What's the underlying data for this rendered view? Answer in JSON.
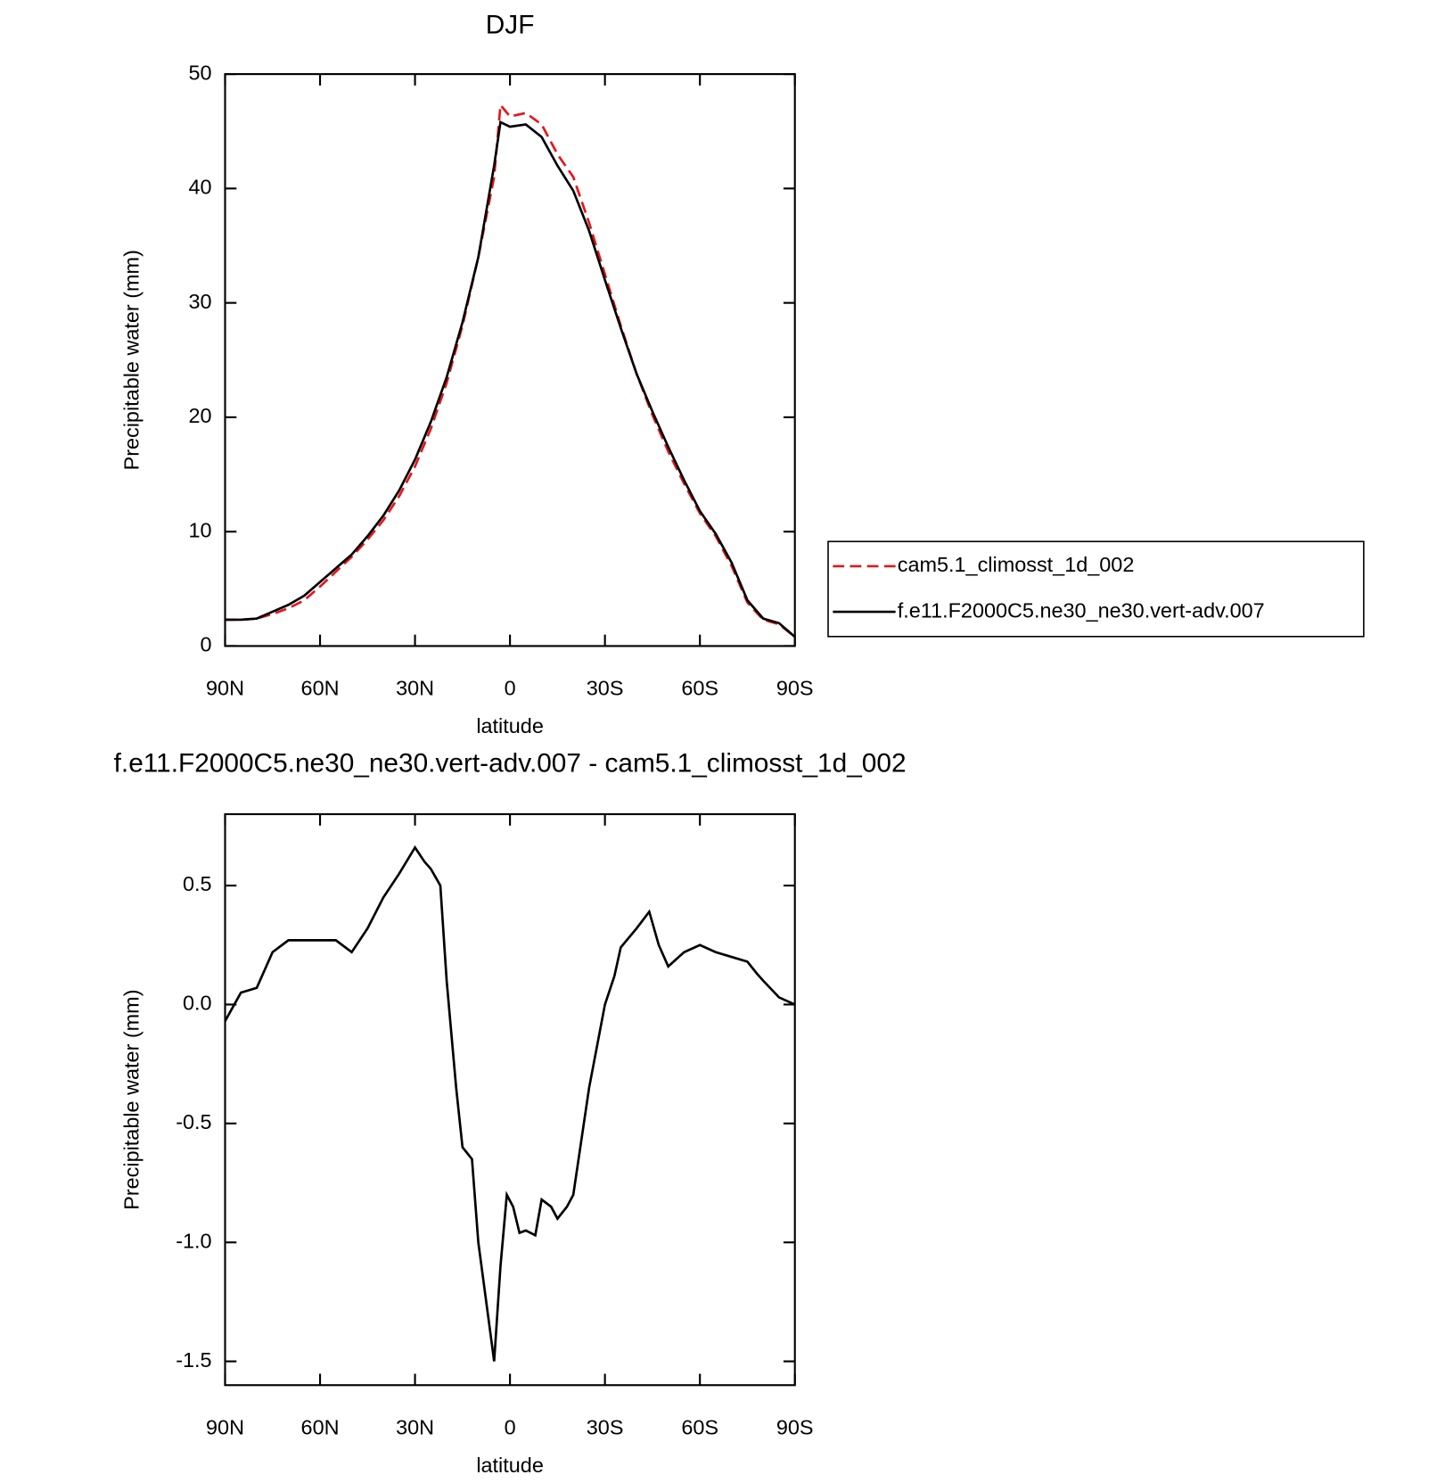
{
  "chart_data": [
    {
      "type": "line",
      "title": "DJF",
      "xlabel": "latitude",
      "ylabel": "Precipitable water (mm)",
      "x": [
        90,
        85,
        80,
        75,
        70,
        65,
        60,
        55,
        50,
        45,
        40,
        35,
        30,
        25,
        20,
        15,
        10,
        5,
        3,
        0,
        -5,
        -10,
        -15,
        -20,
        -25,
        -30,
        -35,
        -40,
        -45,
        -50,
        -55,
        -60,
        -65,
        -70,
        -75,
        -80,
        -85,
        -90
      ],
      "series": [
        {
          "name": "cam5.1_climosst_1d_002",
          "color": "#e8141c",
          "dashed": true,
          "values": [
            2.3,
            2.3,
            2.4,
            2.8,
            3.3,
            4.0,
            5.2,
            6.5,
            7.8,
            9.3,
            11.0,
            13.1,
            15.7,
            19.0,
            23.0,
            28.0,
            34.0,
            41.0,
            47.3,
            46.3,
            46.6,
            45.6,
            43.0,
            41.0,
            37.0,
            32.5,
            28.0,
            23.8,
            20.2,
            17.0,
            14.2,
            11.6,
            9.6,
            7.0,
            3.8,
            2.3,
            1.9,
            0.8
          ]
        },
        {
          "name": "f.e11.F2000C5.ne30_ne30.vert-adv.007",
          "color": "#000000",
          "dashed": false,
          "values": [
            2.3,
            2.3,
            2.4,
            3.0,
            3.6,
            4.4,
            5.6,
            6.8,
            8.0,
            9.6,
            11.4,
            13.6,
            16.3,
            19.6,
            23.5,
            28.3,
            34.0,
            42.0,
            45.8,
            45.4,
            45.6,
            44.5,
            42.0,
            39.8,
            36.3,
            32.0,
            27.8,
            23.8,
            20.5,
            17.4,
            14.5,
            11.8,
            9.8,
            7.3,
            4.0,
            2.4,
            2.0,
            0.8
          ]
        }
      ],
      "xlim": [
        90,
        -90
      ],
      "ylim": [
        0,
        50
      ],
      "xticks": [
        {
          "value": 90,
          "label": "90N"
        },
        {
          "value": 60,
          "label": "60N"
        },
        {
          "value": 30,
          "label": "30N"
        },
        0,
        {
          "value": -30,
          "label": "30S"
        },
        {
          "value": -60,
          "label": "60S"
        },
        {
          "value": -90,
          "label": "90S"
        }
      ],
      "yticks": [
        0,
        10,
        20,
        30,
        40,
        50
      ]
    },
    {
      "type": "line",
      "title": "f.e11.F2000C5.ne30_ne30.vert-adv.007 - cam5.1_climosst_1d_002",
      "xlabel": "latitude",
      "ylabel": "Precipitable water (mm)",
      "x": [
        90,
        85,
        80,
        75,
        70,
        65,
        60,
        55,
        50,
        45,
        40,
        35,
        30,
        27,
        25,
        22,
        20,
        17,
        15,
        12,
        10,
        7,
        5,
        3,
        1,
        -1,
        -3,
        -5,
        -8,
        -10,
        -13,
        -15,
        -18,
        -20,
        -25,
        -30,
        -33,
        -35,
        -40,
        -44,
        -47,
        -50,
        -55,
        -60,
        -65,
        -70,
        -75,
        -78,
        -80,
        -85,
        -90
      ],
      "series": [
        {
          "color": "#000000",
          "dashed": false,
          "values": [
            -0.07,
            0.05,
            0.07,
            0.22,
            0.27,
            0.27,
            0.27,
            0.27,
            0.22,
            0.32,
            0.45,
            0.55,
            0.66,
            0.6,
            0.57,
            0.5,
            0.1,
            -0.35,
            -0.6,
            -0.65,
            -1.0,
            -1.3,
            -1.5,
            -1.1,
            -0.8,
            -0.85,
            -0.96,
            -0.95,
            -0.97,
            -0.82,
            -0.85,
            -0.9,
            -0.85,
            -0.8,
            -0.35,
            0.0,
            0.12,
            0.24,
            0.32,
            0.39,
            0.25,
            0.16,
            0.22,
            0.25,
            0.22,
            0.2,
            0.18,
            0.13,
            0.1,
            0.03,
            0.0
          ]
        }
      ],
      "xlim": [
        90,
        -90
      ],
      "ylim": [
        -1.6,
        0.8
      ],
      "xticks": [
        {
          "value": 90,
          "label": "90N"
        },
        {
          "value": 60,
          "label": "60N"
        },
        {
          "value": 30,
          "label": "30N"
        },
        0,
        {
          "value": -30,
          "label": "30S"
        },
        {
          "value": -60,
          "label": "60S"
        },
        {
          "value": -90,
          "label": "90S"
        }
      ],
      "yticks": [
        -1.5,
        {
          "value": -1.0,
          "label": "-1.0"
        },
        -0.5,
        {
          "value": 0.0,
          "label": "0.0"
        },
        0.5
      ]
    }
  ]
}
